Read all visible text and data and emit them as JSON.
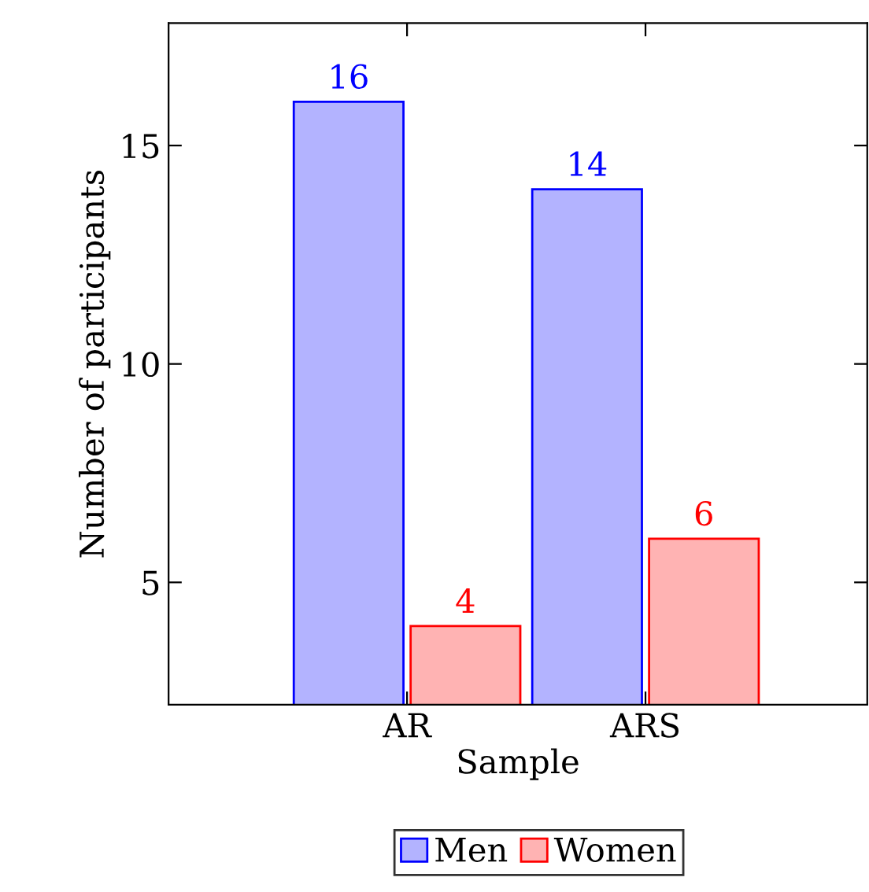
{
  "chart_data": {
    "type": "bar",
    "xlabel": "Sample",
    "ylabel": "Number of participants",
    "categories": [
      "AR",
      "ARS"
    ],
    "series": [
      {
        "name": "Men",
        "color": "#b3b3ff",
        "values": [
          16,
          14
        ]
      },
      {
        "name": "Women",
        "color": "#ffb3b3",
        "values": [
          4,
          6
        ]
      }
    ],
    "ylim": [
      2.2,
      17.8
    ],
    "yticks": [
      5,
      10,
      15
    ],
    "data_labels": true,
    "grid": false,
    "legend": "bottom"
  }
}
